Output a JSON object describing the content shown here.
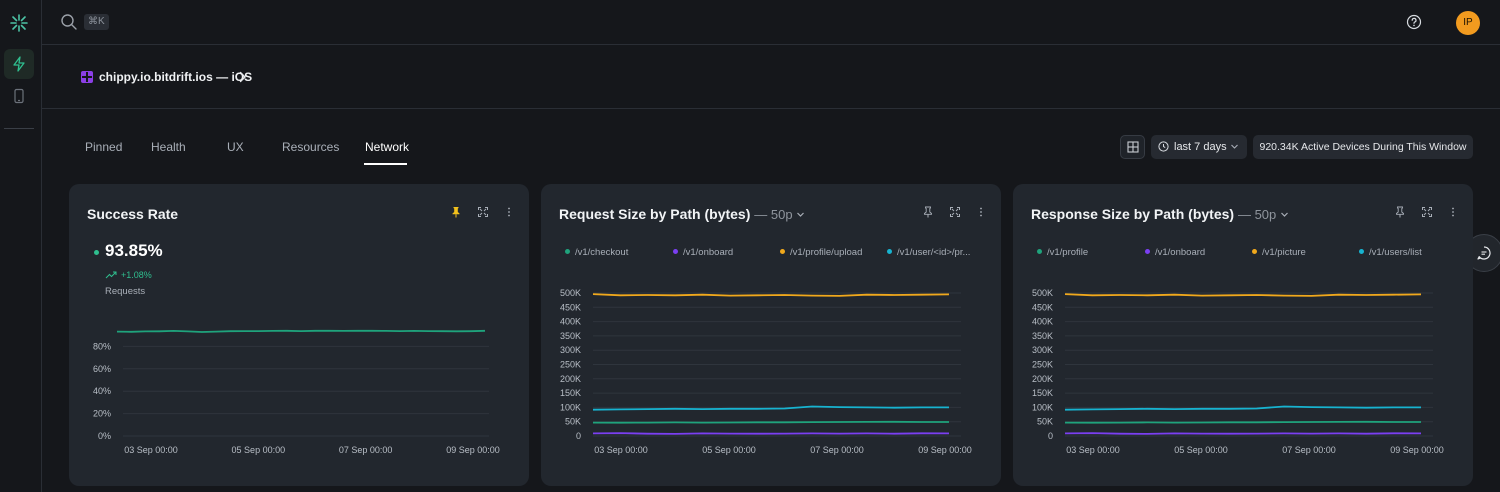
{
  "colors": {
    "accent_green": "#2fbf8f",
    "series_green": "#1fa37c",
    "series_purple": "#7b3ff2",
    "series_orange": "#f0a81c",
    "series_cyan": "#17b3d0",
    "avatar_bg": "#f29b1f",
    "pin_active": "#f2c11c"
  },
  "sidebar": {
    "logo_icon": "bitdrift-logo-icon",
    "items": [
      {
        "icon": "lightning-icon",
        "active": true
      },
      {
        "icon": "phone-icon",
        "active": false
      }
    ]
  },
  "topbar": {
    "search_icon": "search-icon",
    "shortcut": "⌘K",
    "help_icon": "help-icon",
    "avatar_initials": "IP"
  },
  "breadcrumb": {
    "app_name": "chippy.io.bitdrift.ios — iOS"
  },
  "tabs": [
    {
      "label": "Pinned",
      "active": false
    },
    {
      "label": "Health",
      "active": false
    },
    {
      "label": "UX",
      "active": false
    },
    {
      "label": "Resources",
      "active": false
    },
    {
      "label": "Network",
      "active": true
    }
  ],
  "toolbar": {
    "time_range": "last 7 days",
    "active_devices": "920.34K Active Devices During This Window"
  },
  "cards": [
    {
      "title": "Success Rate",
      "subtitle": "",
      "metric_value": "93.85%",
      "metric_change": "+1.08%",
      "metric_label": "Requests",
      "pinned": true,
      "legend": []
    },
    {
      "title": "Request Size by Path (bytes)",
      "subtitle": "— 50p",
      "pinned": false,
      "legend": [
        {
          "label": "/v1/checkout",
          "color": "#1fa37c"
        },
        {
          "label": "/v1/onboard",
          "color": "#7b3ff2"
        },
        {
          "label": "/v1/profile/upload",
          "color": "#f0a81c"
        },
        {
          "label": "/v1/user/<id>/pr...",
          "color": "#17b3d0"
        }
      ]
    },
    {
      "title": "Response Size by Path (bytes)",
      "subtitle": "— 50p",
      "pinned": false,
      "legend": [
        {
          "label": "/v1/profile",
          "color": "#1fa37c"
        },
        {
          "label": "/v1/onboard",
          "color": "#7b3ff2"
        },
        {
          "label": "/v1/picture",
          "color": "#f0a81c"
        },
        {
          "label": "/v1/users/list",
          "color": "#17b3d0"
        }
      ]
    }
  ],
  "chart_data": [
    {
      "type": "line",
      "title": "Success Rate",
      "x_ticks": [
        "03 Sep 00:00",
        "05 Sep 00:00",
        "07 Sep 00:00",
        "09 Sep 00:00"
      ],
      "y_ticks": [
        "0%",
        "20%",
        "40%",
        "60%",
        "80%"
      ],
      "ylim": [
        0,
        100
      ],
      "series": [
        {
          "color": "#1fa37c",
          "values": [
            93.2,
            93.0,
            93.4,
            93.5,
            93.8,
            93.4,
            92.9,
            93.2,
            93.6,
            93.7,
            93.7,
            93.8,
            93.9,
            93.7,
            93.9,
            93.9,
            93.8,
            93.9,
            93.9,
            93.8,
            93.7,
            93.8,
            93.7,
            93.6,
            93.5,
            93.6,
            93.9
          ]
        }
      ]
    },
    {
      "type": "line",
      "title": "Request Size by Path (bytes)",
      "x_ticks": [
        "03 Sep 00:00",
        "05 Sep 00:00",
        "07 Sep 00:00",
        "09 Sep 00:00"
      ],
      "y_ticks": [
        "0",
        "50K",
        "100K",
        "150K",
        "200K",
        "250K",
        "300K",
        "350K",
        "400K",
        "450K",
        "500K"
      ],
      "ylim": [
        0,
        500000
      ],
      "series": [
        {
          "name": "/v1/checkout",
          "color": "#1fa37c",
          "values": [
            47000,
            46500,
            47000,
            47500,
            47000,
            47200,
            47800,
            48000,
            48500,
            49000,
            49200,
            49500,
            49000,
            48800
          ]
        },
        {
          "name": "/v1/onboard",
          "color": "#7b3ff2",
          "values": [
            9000,
            10000,
            8000,
            7500,
            9000,
            8500,
            8000,
            8500,
            9000,
            8500,
            9000,
            8000,
            9500,
            9000
          ]
        },
        {
          "name": "/v1/profile/upload",
          "color": "#f0a81c",
          "values": [
            496000,
            492000,
            493000,
            492000,
            494000,
            491000,
            492000,
            493000,
            491000,
            490000,
            494000,
            493000,
            494000,
            495000
          ]
        },
        {
          "name": "/v1/user/<id>/pr...",
          "color": "#17b3d0",
          "values": [
            92000,
            93000,
            94000,
            95000,
            94000,
            95000,
            95000,
            96000,
            103000,
            101000,
            100000,
            99000,
            100000,
            100000
          ]
        }
      ]
    },
    {
      "type": "line",
      "title": "Response Size by Path (bytes)",
      "x_ticks": [
        "03 Sep 00:00",
        "05 Sep 00:00",
        "07 Sep 00:00",
        "09 Sep 00:00"
      ],
      "y_ticks": [
        "0",
        "50K",
        "100K",
        "150K",
        "200K",
        "250K",
        "300K",
        "350K",
        "400K",
        "450K",
        "500K"
      ],
      "ylim": [
        0,
        500000
      ],
      "series": [
        {
          "name": "/v1/profile",
          "color": "#1fa37c",
          "values": [
            47000,
            46500,
            47000,
            47500,
            47000,
            47200,
            47800,
            48000,
            48500,
            49000,
            49200,
            49500,
            49000,
            48800
          ]
        },
        {
          "name": "/v1/onboard",
          "color": "#7b3ff2",
          "values": [
            9000,
            10000,
            8000,
            7500,
            9000,
            8500,
            8000,
            8500,
            9000,
            8500,
            9000,
            8000,
            9500,
            9000
          ]
        },
        {
          "name": "/v1/picture",
          "color": "#f0a81c",
          "values": [
            496000,
            492000,
            493000,
            492000,
            494000,
            491000,
            492000,
            493000,
            491000,
            490000,
            494000,
            493000,
            494000,
            495000
          ]
        },
        {
          "name": "/v1/users/list",
          "color": "#17b3d0",
          "values": [
            92000,
            93000,
            94000,
            95000,
            94000,
            95000,
            95000,
            96000,
            103000,
            101000,
            100000,
            99000,
            100000,
            100000
          ]
        }
      ]
    }
  ]
}
